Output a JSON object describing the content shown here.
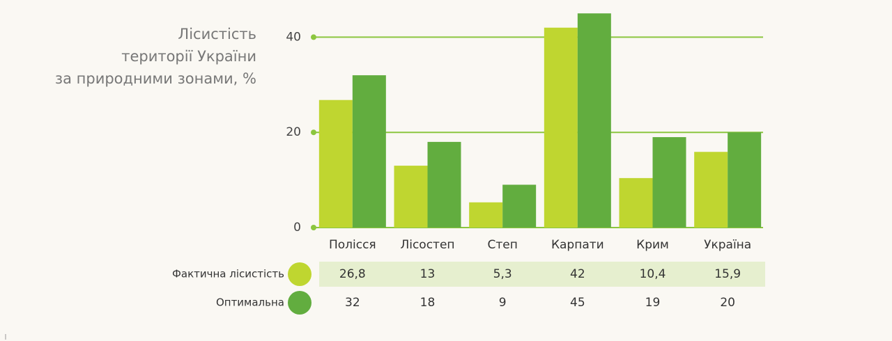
{
  "chart_data": {
    "type": "bar",
    "title": [
      "Лісистість",
      "території України",
      "за природними зонами, %"
    ],
    "categories": [
      "Полісся",
      "Лісостеп",
      "Степ",
      "Карпати",
      "Крим",
      "Україна"
    ],
    "series": [
      {
        "name": "Фактична лісистість",
        "color": "#bfd630",
        "values": [
          26.8,
          13,
          5.3,
          42,
          10.4,
          15.9
        ],
        "value_labels": [
          "26,8",
          "13",
          "5,3",
          "42",
          "10,4",
          "15,9"
        ]
      },
      {
        "name": "Оптимальна",
        "color": "#62ad3f",
        "values": [
          32,
          18,
          9,
          45,
          19,
          20
        ],
        "value_labels": [
          "32",
          "18",
          "9",
          "45",
          "19",
          "20"
        ]
      }
    ],
    "ylim": [
      0,
      46
    ],
    "yticks": [
      0,
      20,
      40
    ],
    "grid": true,
    "grid_color": "#8cc63f"
  }
}
